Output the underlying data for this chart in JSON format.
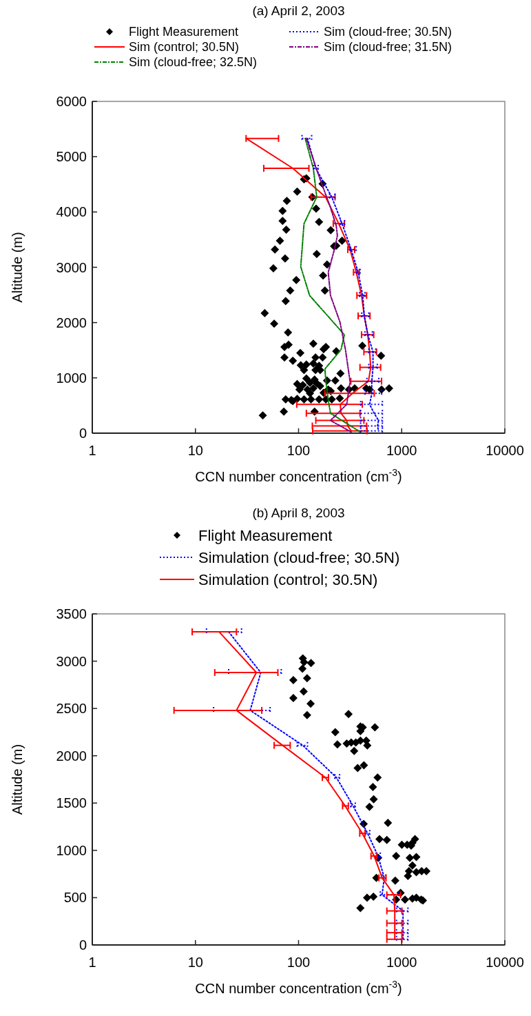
{
  "chart_data": [
    {
      "type": "line",
      "title": "(a) April 2, 2003",
      "xlabel": "CCN number concentration (cm$^{-3}$)",
      "ylabel": "Altitude (m)",
      "log": "x",
      "xlim": [
        1,
        10000
      ],
      "xticks": [
        1,
        10,
        100,
        1000,
        10000
      ],
      "ylim": [
        0,
        6000
      ],
      "yticks": [
        0,
        1000,
        2000,
        3000,
        4000,
        5000,
        6000
      ],
      "grid": false,
      "legend": "top",
      "series": [
        {
          "name": "Flight Measurement",
          "type": "scatter",
          "marker": "diamond",
          "color": "#000000",
          "x": [
            113,
            119,
            171,
            97,
            136,
            77,
            70,
            148,
            70,
            158,
            76,
            205,
            66,
            264,
            221,
            232,
            59,
            150,
            74,
            189,
            57,
            173,
            95,
            180,
            83,
            75,
            47,
            58,
            79,
            139,
            184,
            73,
            80,
            175,
            232,
            415,
            104,
            631,
            73,
            88,
            146,
            171,
            105,
            119,
            139,
            158,
            113,
            146,
            162,
            255,
            119,
            143,
            189,
            227,
            97,
            110,
            129,
            150,
            162,
            102,
            122,
            139,
            194,
            258,
            308,
            350,
            453,
            489,
            638,
            755,
            205,
            129,
            175,
            75,
            85,
            97,
            113,
            132,
            158,
            184,
            210,
            251,
            88,
            72,
            143,
            45
          ],
          "values": [
            4590,
            4610,
            4510,
            4370,
            4270,
            4200,
            4020,
            4060,
            3840,
            3820,
            3680,
            3670,
            3480,
            3480,
            3380,
            3390,
            3320,
            3240,
            3160,
            3050,
            2980,
            2850,
            2770,
            2580,
            2580,
            2390,
            2170,
            1980,
            1820,
            1620,
            1560,
            1560,
            1600,
            1520,
            1480,
            1580,
            1450,
            1400,
            1370,
            1310,
            1370,
            1370,
            1230,
            1240,
            1260,
            1220,
            1140,
            1140,
            1140,
            1080,
            990,
            970,
            950,
            950,
            890,
            870,
            910,
            900,
            850,
            790,
            790,
            810,
            790,
            810,
            790,
            810,
            810,
            790,
            790,
            810,
            760,
            720,
            730,
            610,
            600,
            620,
            610,
            610,
            610,
            610,
            610,
            630,
            580,
            390,
            390,
            320
          ]
        },
        {
          "name": "Sim (control; 30.5N)",
          "line_style": "solid",
          "color": "#ff0000",
          "x": [
            31,
            88,
            183,
            245,
            316,
            363,
            408,
            434,
            469,
            489,
            501,
            476,
            333,
            254,
            258,
            293,
            300,
            324
          ],
          "values": [
            5330,
            4790,
            4270,
            3790,
            3320,
            2910,
            2490,
            2120,
            1780,
            1470,
            1190,
            940,
            720,
            520,
            360,
            230,
            130,
            40
          ],
          "xerrors": [
            [
              31,
              64
            ],
            [
              46,
              126
            ],
            [
              132,
              226
            ],
            [
              217,
              278
            ],
            [
              300,
              350
            ],
            [
              341,
              388
            ],
            [
              368,
              457
            ],
            [
              378,
              493
            ],
            [
              408,
              536
            ],
            [
              430,
              570
            ],
            [
              394,
              625
            ],
            [
              321,
              638
            ],
            [
              180,
              541
            ],
            [
              96,
              415
            ],
            [
              119,
              394
            ],
            [
              147,
              430
            ],
            [
              136,
              457
            ],
            [
              137,
              461
            ]
          ]
        },
        {
          "name": "Sim (cloud-free; 32.5N)",
          "line_style": "dashed",
          "color": "#008000",
          "x": [
            116,
            139,
            150,
            113,
            105,
            128,
            278,
            258,
            180,
            184,
            194,
            204,
            398
          ],
          "values": [
            5330,
            4790,
            4270,
            3790,
            3010,
            2490,
            1780,
            1510,
            1160,
            940,
            600,
            360,
            20
          ]
        },
        {
          "name": "Sim (cloud-free; 30.5N)",
          "line_style": "dotted",
          "color": "#0000ff",
          "x": [
            122,
            147,
            210,
            264,
            324,
            378,
            419,
            434,
            469,
            527,
            527,
            513,
            513,
            489,
            541,
            596,
            583,
            596
          ],
          "values": [
            5330,
            4790,
            4270,
            3790,
            3320,
            2910,
            2490,
            2120,
            1780,
            1470,
            1190,
            940,
            720,
            520,
            360,
            230,
            130,
            40
          ],
          "xerrors": [
            [
              108,
              134
            ],
            [
              140,
              155
            ],
            [
              200,
              225
            ],
            [
              255,
              280
            ],
            [
              315,
              362
            ],
            [
              365,
              395
            ],
            [
              390,
              440
            ],
            [
              410,
              480
            ],
            [
              440,
              520
            ],
            [
              480,
              560
            ],
            [
              480,
              580
            ],
            [
              460,
              600
            ],
            [
              440,
              640
            ],
            [
              400,
              650
            ],
            [
              400,
              650
            ],
            [
              400,
              650
            ],
            [
              400,
              650
            ],
            [
              400,
              650
            ]
          ]
        },
        {
          "name": "Sim (cloud-free; 31.5N)",
          "line_style": "dashed",
          "color": "#800080",
          "x": [
            119,
            154,
            204,
            232,
            238,
            221,
            194,
            204,
            252,
            285,
            316,
            293,
            204,
            324
          ],
          "values": [
            5330,
            4700,
            4080,
            3750,
            3570,
            3300,
            2910,
            2490,
            2010,
            1510,
            930,
            520,
            230,
            20
          ]
        }
      ]
    },
    {
      "type": "line",
      "title": "(b) April 8, 2003",
      "xlabel": "CCN number concentration (cm$^{-3}$)",
      "ylabel": "Altitude (m)",
      "log": "x",
      "xlim": [
        1,
        10000
      ],
      "xticks": [
        1,
        10,
        100,
        1000,
        10000
      ],
      "ylim": [
        0,
        3500
      ],
      "yticks": [
        0,
        500,
        1000,
        1500,
        2000,
        2500,
        3000,
        3500
      ],
      "grid": false,
      "legend": "top",
      "series": [
        {
          "name": "Flight Measurement",
          "type": "scatter",
          "marker": "diamond",
          "color": "#000000",
          "x": [
            110,
            132,
            113,
            109,
            89,
            121,
            112,
            89,
            131,
            121,
            305,
            398,
            419,
            550,
            227,
            398,
            238,
            293,
            324,
            359,
            398,
            453,
            464,
            346,
            430,
            374,
            584,
            526,
            535,
            487,
            428,
            735,
            609,
            718,
            1004,
            1130,
            1270,
            1346,
            1236,
            592,
            883,
            1198,
            1387,
            1270,
            1175,
            1387,
            1561,
            1735,
            1149,
            568,
            866,
            975,
            462,
            532,
            883,
            1077,
            1270,
            1387,
            1545,
            1606,
            398
          ],
          "values": [
            3030,
            2980,
            2990,
            2920,
            2800,
            2820,
            2680,
            2610,
            2550,
            2430,
            2440,
            2310,
            2300,
            2300,
            2250,
            2260,
            2120,
            2130,
            2140,
            2140,
            2160,
            2160,
            2110,
            2050,
            1900,
            1870,
            1770,
            1670,
            1540,
            1460,
            1280,
            1290,
            1120,
            1110,
            1060,
            1060,
            1080,
            1120,
            1050,
            920,
            940,
            920,
            930,
            840,
            780,
            770,
            780,
            780,
            730,
            710,
            680,
            550,
            500,
            510,
            480,
            480,
            490,
            500,
            480,
            470,
            390
          ]
        },
        {
          "name": "Simulation (cloud-free; 30.5N)",
          "line_style": "dotted",
          "color": "#0000ff",
          "x": [
            21,
            43,
            34,
            110,
            233,
            338,
            467,
            590,
            677,
            646,
            1030,
            1030,
            1030,
            1030
          ],
          "values": [
            3310,
            2880,
            2480,
            2110,
            1770,
            1470,
            1180,
            940,
            710,
            530,
            360,
            230,
            130,
            60
          ],
          "xerrors": [
            [
              12.8,
              28
            ],
            [
              21,
              68
            ],
            [
              15,
              53
            ],
            [
              97,
              122
            ],
            [
              225,
              250
            ],
            [
              320,
              355
            ],
            [
              445,
              490
            ],
            [
              565,
              620
            ],
            [
              650,
              700
            ],
            [
              620,
              930
            ],
            [
              890,
              1150
            ],
            [
              890,
              1150
            ],
            [
              890,
              1150
            ],
            [
              890,
              1150
            ]
          ]
        },
        {
          "name": "Simulation (control; 30.5N)",
          "line_style": "solid",
          "color": "#ff0000",
          "x": [
            17,
            39,
            25,
            70,
            182,
            283,
            415,
            541,
            646,
            841,
            857,
            857,
            857,
            857
          ],
          "values": [
            3310,
            2880,
            2480,
            2110,
            1770,
            1470,
            1180,
            940,
            710,
            530,
            360,
            230,
            130,
            60
          ],
          "xerrors": [
            [
              9.3,
              25
            ],
            [
              15.4,
              63
            ],
            [
              6.2,
              44
            ],
            [
              58,
              83
            ],
            [
              170,
              195
            ],
            [
              267,
              304
            ],
            [
              392,
              441
            ],
            [
              504,
              574
            ],
            [
              601,
              705
            ],
            [
              718,
              975
            ],
            [
              718,
              1005
            ],
            [
              718,
              1005
            ],
            [
              718,
              1005
            ],
            [
              718,
              1005
            ]
          ]
        }
      ]
    }
  ]
}
